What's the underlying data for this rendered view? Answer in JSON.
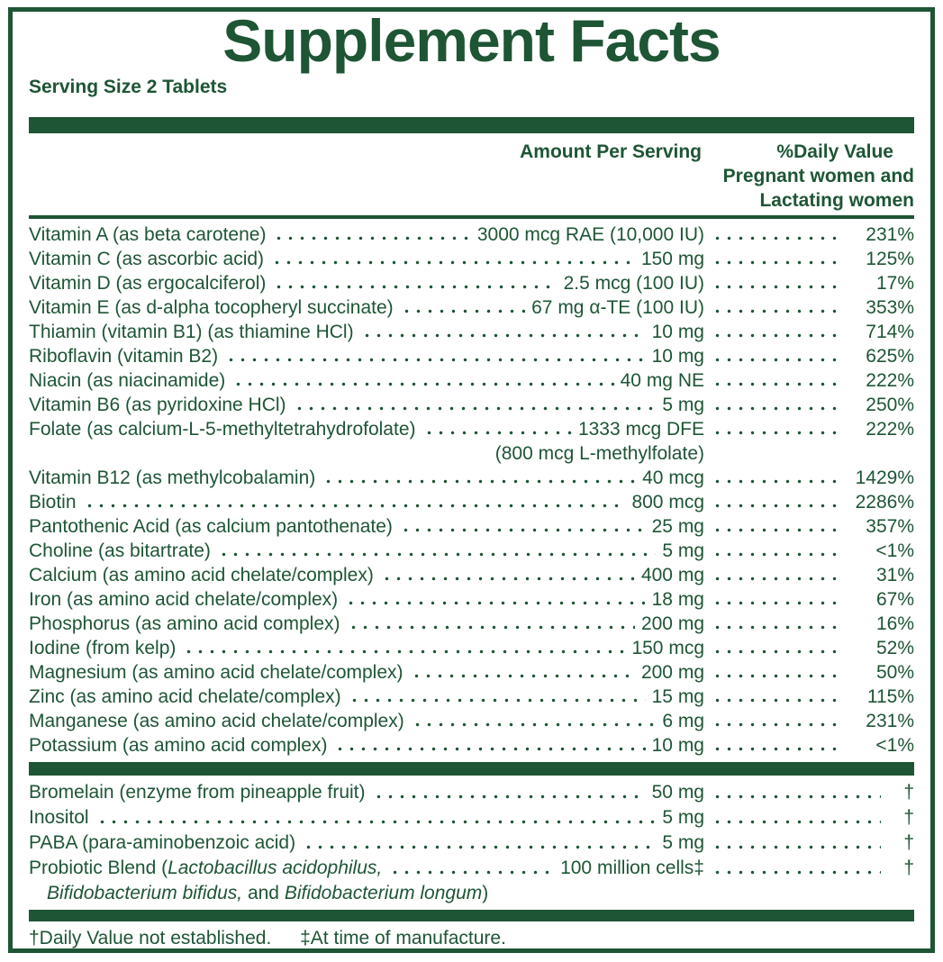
{
  "label": {
    "title": "Supplement Facts",
    "serving_size": "Serving Size 2 Tablets",
    "columns": {
      "amount": "Amount Per Serving",
      "daily_value": "%Daily Value",
      "daily_value_sub1": "Pregnant women and",
      "daily_value_sub2": "Lactating women"
    },
    "footnotes": {
      "dagger": "†Daily Value not established.",
      "double_dagger": "‡At time of manufacture."
    },
    "colors": {
      "green": "#1E5535"
    }
  },
  "sections": [
    {
      "rows": [
        {
          "name": "Vitamin A (as beta carotene)",
          "amount": "3000 mcg RAE (10,000 IU)",
          "pct": "231%"
        },
        {
          "name": "Vitamin C (as ascorbic acid)",
          "amount": "150 mg",
          "pct": "125%"
        },
        {
          "name": "Vitamin D (as ergocalciferol)",
          "amount": "2.5 mcg (100 IU)",
          "pct": "17%"
        },
        {
          "name": "Vitamin E (as d-alpha tocopheryl succinate)",
          "amount": "67 mg α-TE (100 IU)",
          "pct": "353%"
        },
        {
          "name": "Thiamin (vitamin B1) (as thiamine HCl)",
          "amount": "10 mg",
          "pct": "714%"
        },
        {
          "name": "Riboflavin (vitamin B2)",
          "amount": "10 mg",
          "pct": "625%"
        },
        {
          "name": "Niacin (as niacinamide)",
          "amount": "40 mg NE",
          "pct": "222%"
        },
        {
          "name": "Vitamin B6 (as pyridoxine HCl)",
          "amount": "5 mg",
          "pct": "250%"
        },
        {
          "name": "Folate (as calcium-L-5-methyltetrahydrofolate)",
          "amount": "1333 mcg DFE",
          "pct": "222%",
          "subline": "(800 mcg L-methylfolate)",
          "subline_align": "amount"
        },
        {
          "name": "Vitamin B12 (as methylcobalamin)",
          "amount": "40 mcg",
          "pct": "1429%"
        },
        {
          "name": "Biotin",
          "amount": "800 mcg",
          "pct": "2286%"
        },
        {
          "name": "Pantothenic Acid (as calcium pantothenate)",
          "amount": "25 mg",
          "pct": "357%"
        },
        {
          "name": "Choline (as bitartrate)",
          "amount": "5 mg",
          "pct": "<1%"
        },
        {
          "name": "Calcium (as amino acid chelate/complex)",
          "amount": "400 mg",
          "pct": "31%"
        },
        {
          "name": "Iron (as amino acid chelate/complex)",
          "amount": "18 mg",
          "pct": "67%"
        },
        {
          "name": "Phosphorus (as amino acid complex)",
          "amount": "200 mg",
          "pct": "16%"
        },
        {
          "name": "Iodine (from kelp)",
          "amount": "150 mcg",
          "pct": "52%"
        },
        {
          "name": "Magnesium (as amino acid chelate/complex)",
          "amount": "200 mg",
          "pct": "50%"
        },
        {
          "name": "Zinc (as amino acid chelate/complex)",
          "amount": "15 mg",
          "pct": "115%"
        },
        {
          "name": "Manganese (as amino acid chelate/complex)",
          "amount": "6 mg",
          "pct": "231%"
        },
        {
          "name": "Potassium (as amino acid complex)",
          "amount": "10 mg",
          "pct": "<1%"
        }
      ]
    },
    {
      "rows": [
        {
          "name": "Bromelain (enzyme from pineapple fruit)",
          "amount": "50 mg",
          "pct": "†"
        },
        {
          "name": "Inositol",
          "amount": "5 mg",
          "pct": "†"
        },
        {
          "name": "PABA (para-aminobenzoic acid)",
          "amount": "5 mg",
          "pct": "†"
        },
        {
          "name_parts": [
            {
              "t": "Probiotic Blend ("
            },
            {
              "t": "Lactobacillus acidophilus,",
              "i": true
            }
          ],
          "amount": "100 million cells‡",
          "pct": "†",
          "subline_parts": [
            {
              "t": "Bifidobacterium bifidus,",
              "i": true
            },
            {
              "t": " and ",
              "i": false
            },
            {
              "t": "Bifidobacterium longum",
              "i": true
            },
            {
              "t": ")",
              "i": false
            }
          ],
          "subline_align": "left"
        }
      ]
    }
  ]
}
